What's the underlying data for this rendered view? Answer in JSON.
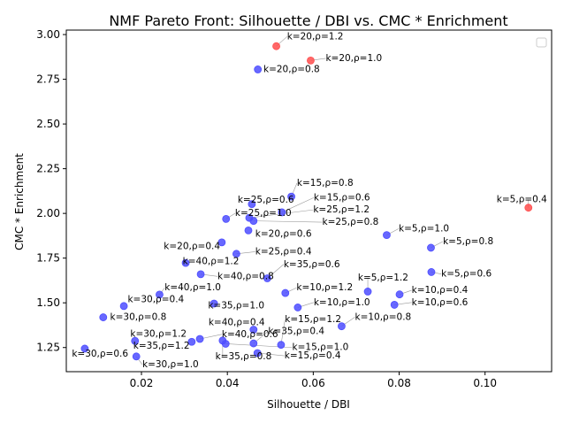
{
  "chart_data": {
    "type": "scatter",
    "title": "NMF Pareto Front: Silhouette / DBI vs. CMC * Enrichment",
    "xlabel": "Silhouette / DBI",
    "ylabel": "CMC * Enrichment",
    "xlim": [
      0.0025,
      0.1155
    ],
    "ylim": [
      1.115,
      3.025
    ],
    "xticks": [
      0.02,
      0.04,
      0.06,
      0.08,
      0.1
    ],
    "xtick_labels": [
      "0.02",
      "0.04",
      "0.06",
      "0.08",
      "0.10"
    ],
    "yticks": [
      1.25,
      1.5,
      1.75,
      2.0,
      2.25,
      2.5,
      2.75,
      3.0
    ],
    "ytick_labels": [
      "1.25",
      "1.50",
      "1.75",
      "2.00",
      "2.25",
      "2.50",
      "2.75",
      "3.00"
    ],
    "grid": false,
    "legend": "top-right",
    "colors": {
      "pareto": "#ff4d4d",
      "other": "#4d4dff",
      "leader": "#999999"
    },
    "series": [
      {
        "role": "pareto",
        "points": [
          {
            "x": 0.0514,
            "y": 2.935,
            "label": "k=20,ρ=1.2",
            "lx": 0.0539,
            "ly": 2.974,
            "anchor": "start"
          },
          {
            "x": 0.0594,
            "y": 2.855,
            "label": "k=20,ρ=1.0",
            "lx": 0.0629,
            "ly": 2.852,
            "anchor": "start"
          },
          {
            "x": 0.1101,
            "y": 2.032,
            "label": "k=5,ρ=0.4",
            "lx": 0.1027,
            "ly": 2.062,
            "anchor": "start"
          }
        ]
      },
      {
        "role": "other",
        "points": [
          {
            "x": 0.0471,
            "y": 2.805,
            "label": "k=20,ρ=0.8",
            "lx": 0.0484,
            "ly": 2.79,
            "anchor": "start"
          },
          {
            "x": 0.0549,
            "y": 2.094,
            "label": "k=15,ρ=0.8",
            "lx": 0.0562,
            "ly": 2.154,
            "anchor": "start"
          },
          {
            "x": 0.0457,
            "y": 2.052,
            "label": "k=25,ρ=0.6",
            "lx": 0.0424,
            "ly": 2.059,
            "anchor": "start"
          },
          {
            "x": 0.0527,
            "y": 2.006,
            "label": "k=15,ρ=0.6",
            "lx": 0.0601,
            "ly": 2.073,
            "anchor": "start"
          },
          {
            "x": 0.0397,
            "y": 1.969,
            "label": "k=25,ρ=1.0",
            "lx": 0.0418,
            "ly": 1.985,
            "anchor": "start"
          },
          {
            "x": 0.0451,
            "y": 1.975,
            "label": "k=25,ρ=1.2",
            "lx": 0.06,
            "ly": 2.005,
            "anchor": "start"
          },
          {
            "x": 0.0461,
            "y": 1.958,
            "label": "k=25,ρ=0.8",
            "lx": 0.0621,
            "ly": 1.936,
            "anchor": "start"
          },
          {
            "x": 0.0449,
            "y": 1.905,
            "label": "k=20,ρ=0.6",
            "lx": 0.0465,
            "ly": 1.869,
            "anchor": "start"
          },
          {
            "x": 0.0387,
            "y": 1.838,
            "label": "k=20,ρ=0.4",
            "lx": 0.0252,
            "ly": 1.8,
            "anchor": "start"
          },
          {
            "x": 0.0421,
            "y": 1.774,
            "label": "k=25,ρ=0.4",
            "lx": 0.0465,
            "ly": 1.771,
            "anchor": "start"
          },
          {
            "x": 0.0771,
            "y": 1.879,
            "label": "k=5,ρ=1.0",
            "lx": 0.0799,
            "ly": 1.9,
            "anchor": "start"
          },
          {
            "x": 0.0874,
            "y": 1.808,
            "label": "k=5,ρ=0.8",
            "lx": 0.0902,
            "ly": 1.828,
            "anchor": "start"
          },
          {
            "x": 0.0875,
            "y": 1.672,
            "label": "k=5,ρ=0.6",
            "lx": 0.0898,
            "ly": 1.646,
            "anchor": "start"
          },
          {
            "x": 0.0303,
            "y": 1.723,
            "label": "k=40,ρ=1.2",
            "lx": 0.0296,
            "ly": 1.715,
            "anchor": "start"
          },
          {
            "x": 0.0338,
            "y": 1.66,
            "label": "k=40,ρ=0.8",
            "lx": 0.0377,
            "ly": 1.633,
            "anchor": "start"
          },
          {
            "x": 0.0493,
            "y": 1.637,
            "label": "k=35,ρ=0.6",
            "lx": 0.0531,
            "ly": 1.7,
            "anchor": "start"
          },
          {
            "x": 0.0242,
            "y": 1.546,
            "label": "k=40,ρ=1.0",
            "lx": 0.0254,
            "ly": 1.569,
            "anchor": "start"
          },
          {
            "x": 0.0535,
            "y": 1.555,
            "label": "k=10,ρ=1.2",
            "lx": 0.0561,
            "ly": 1.569,
            "anchor": "start"
          },
          {
            "x": 0.0727,
            "y": 1.563,
            "label": "k=5,ρ=1.2",
            "lx": 0.0704,
            "ly": 1.625,
            "anchor": "start"
          },
          {
            "x": 0.0801,
            "y": 1.547,
            "label": "k=10,ρ=0.4",
            "lx": 0.0829,
            "ly": 1.555,
            "anchor": "start"
          },
          {
            "x": 0.0159,
            "y": 1.482,
            "label": "k=30,ρ=0.4",
            "lx": 0.0168,
            "ly": 1.503,
            "anchor": "start"
          },
          {
            "x": 0.0369,
            "y": 1.496,
            "label": "k=35,ρ=1.0",
            "lx": 0.0355,
            "ly": 1.47,
            "anchor": "start"
          },
          {
            "x": 0.0564,
            "y": 1.474,
            "label": "k=10,ρ=1.0",
            "lx": 0.0601,
            "ly": 1.487,
            "anchor": "start"
          },
          {
            "x": 0.0789,
            "y": 1.489,
            "label": "k=10,ρ=0.6",
            "lx": 0.0829,
            "ly": 1.487,
            "anchor": "start"
          },
          {
            "x": 0.0111,
            "y": 1.419,
            "label": "k=30,ρ=0.8",
            "lx": 0.0127,
            "ly": 1.405,
            "anchor": "start"
          },
          {
            "x": 0.0666,
            "y": 1.369,
            "label": "k=10,ρ=0.8",
            "lx": 0.0697,
            "ly": 1.405,
            "anchor": "start"
          },
          {
            "x": 0.0461,
            "y": 1.35,
            "label": "k=40,ρ=0.4",
            "lx": 0.0356,
            "ly": 1.375,
            "anchor": "start"
          },
          {
            "x": 0.0525,
            "y": 1.265,
            "label": "k=15,ρ=1.2",
            "lx": 0.0534,
            "ly": 1.391,
            "anchor": "start"
          },
          {
            "x": 0.0185,
            "y": 1.287,
            "label": "k=30,ρ=1.2",
            "lx": 0.0174,
            "ly": 1.311,
            "anchor": "start"
          },
          {
            "x": 0.0336,
            "y": 1.298,
            "label": "k=40,ρ=0.6",
            "lx": 0.0387,
            "ly": 1.309,
            "anchor": "start"
          },
          {
            "x": 0.0461,
            "y": 1.273,
            "label": "k=35,ρ=0.4",
            "lx": 0.0495,
            "ly": 1.326,
            "anchor": "start"
          },
          {
            "x": 0.0317,
            "y": 1.282,
            "label": "k=35,ρ=1.2",
            "lx": 0.0181,
            "ly": 1.244,
            "anchor": "start"
          },
          {
            "x": 0.0389,
            "y": 1.289,
            "label": "k=35,ρ=0.8",
            "lx": 0.0372,
            "ly": 1.184,
            "anchor": "start"
          },
          {
            "x": 0.0396,
            "y": 1.271,
            "label": "k=15,ρ=1.0",
            "lx": 0.0551,
            "ly": 1.235,
            "anchor": "start"
          },
          {
            "x": 0.0068,
            "y": 1.244,
            "label": "k=30,ρ=0.6",
            "lx": 0.0038,
            "ly": 1.2,
            "anchor": "start"
          },
          {
            "x": 0.0188,
            "y": 1.2,
            "label": "k=30,ρ=1.0",
            "lx": 0.0202,
            "ly": 1.14,
            "anchor": "start"
          },
          {
            "x": 0.047,
            "y": 1.219,
            "label": "k=15,ρ=0.4",
            "lx": 0.0533,
            "ly": 1.189,
            "anchor": "start"
          }
        ]
      }
    ]
  }
}
